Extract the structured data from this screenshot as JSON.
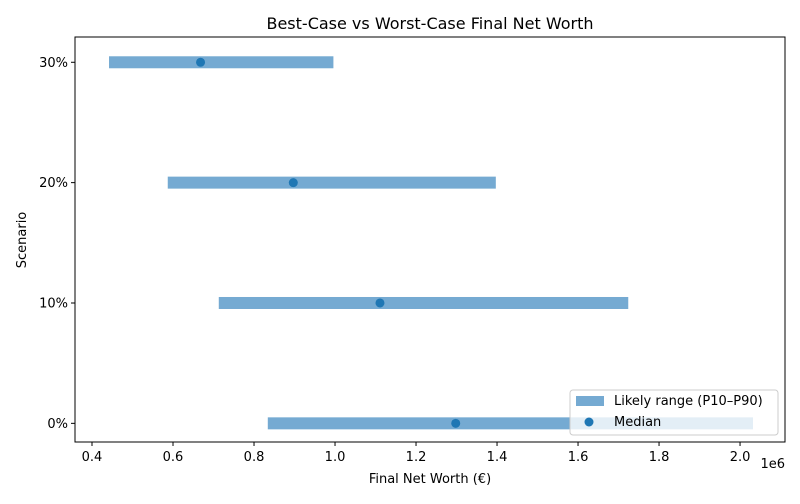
{
  "chart_data": {
    "type": "range-bar",
    "title": "Best-Case vs Worst-Case Final Net Worth",
    "xlabel": "Final Net Worth (€)",
    "ylabel": "Scenario",
    "x_offset_label": "1e6",
    "xlim": [
      0.358,
      2.111
    ],
    "x_scale": 1000000,
    "xticks": [
      0.4,
      0.6,
      0.8,
      1.0,
      1.2,
      1.4,
      1.6,
      1.8,
      2.0
    ],
    "xtick_labels": [
      "0.4",
      "0.6",
      "0.8",
      "1.0",
      "1.2",
      "1.4",
      "1.6",
      "1.8",
      "2.0"
    ],
    "categories": [
      "0%",
      "20%",
      "10%",
      "30%"
    ],
    "rows": [
      {
        "scenario": "0%",
        "p10": 834000,
        "p90": 2032000,
        "median": 1298000
      },
      {
        "scenario": "10%",
        "p10": 713000,
        "p90": 1724000,
        "median": 1111000
      },
      {
        "scenario": "20%",
        "p10": 587000,
        "p90": 1397000,
        "median": 897000
      },
      {
        "scenario": "30%",
        "p10": 442000,
        "p90": 996000,
        "median": 668000
      }
    ],
    "legend": {
      "placement": "lower-right",
      "entries": [
        {
          "label": "Likely range (P10–P90)",
          "kind": "bar"
        },
        {
          "label": "Median",
          "kind": "point"
        }
      ]
    },
    "colors": {
      "range": "#75aad2",
      "median": "#1f77b4"
    },
    "grid": false
  }
}
